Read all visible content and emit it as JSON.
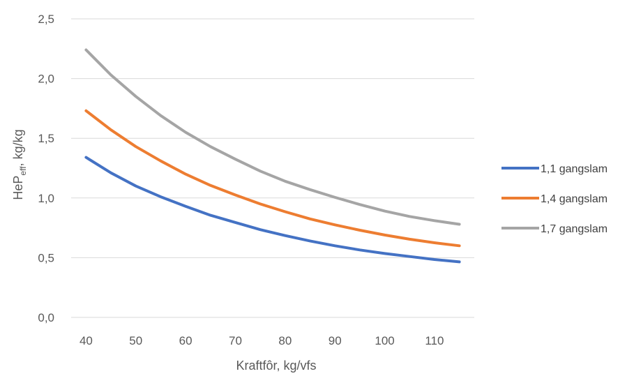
{
  "chart_data": {
    "type": "line",
    "title": "",
    "xlabel": "Kraftfôr, kg/vfs",
    "ylabel": {
      "main": "HeP",
      "sub": "eff",
      "rest": ", kg/kg"
    },
    "xlim": [
      37,
      118
    ],
    "ylim": [
      0,
      2.5
    ],
    "x_ticks": [
      "40",
      "50",
      "60",
      "70",
      "80",
      "90",
      "100",
      "110"
    ],
    "y_ticks": [
      "0,0",
      "0,5",
      "1,0",
      "1,5",
      "2,0",
      "2,5"
    ],
    "grid": true,
    "legend_position": "right",
    "x": [
      40,
      45,
      50,
      55,
      60,
      65,
      70,
      75,
      80,
      85,
      90,
      95,
      100,
      105,
      110,
      115
    ],
    "series": [
      {
        "name": "1,1 gangslam",
        "color": "#4472c4",
        "values": [
          1.34,
          1.21,
          1.1,
          1.01,
          0.93,
          0.855,
          0.795,
          0.735,
          0.685,
          0.64,
          0.6,
          0.565,
          0.535,
          0.51,
          0.485,
          0.465
        ]
      },
      {
        "name": "1,4 gangslam",
        "color": "#ed7d31",
        "values": [
          1.73,
          1.57,
          1.43,
          1.31,
          1.2,
          1.105,
          1.025,
          0.95,
          0.885,
          0.825,
          0.775,
          0.73,
          0.69,
          0.655,
          0.625,
          0.6
        ]
      },
      {
        "name": "1,7 gangslam",
        "color": "#a5a5a5",
        "values": [
          2.24,
          2.03,
          1.85,
          1.69,
          1.55,
          1.43,
          1.325,
          1.225,
          1.14,
          1.07,
          1.005,
          0.945,
          0.89,
          0.845,
          0.81,
          0.78
        ]
      }
    ]
  }
}
